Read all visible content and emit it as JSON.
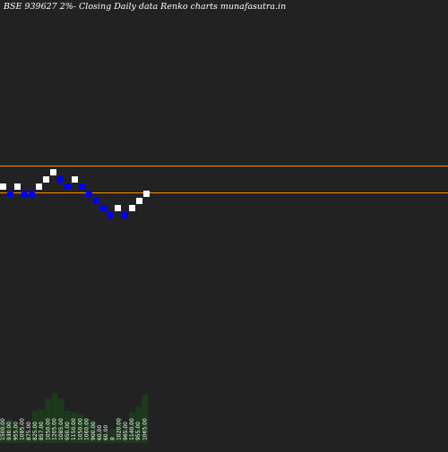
{
  "chart_data": {
    "type": "renko",
    "title": "BSE 939627 2%-  Closing Daily data  Renko  charts munafasutra.in",
    "colors": {
      "background": "#222222",
      "up_brick": "#ffffff",
      "down_brick": "#0000ff",
      "hline": "#ff8c00",
      "volume": "#1c3a1c",
      "label": "#ffffff"
    },
    "horizontal_lines": [
      {
        "level": "upper"
      },
      {
        "level": "lower"
      }
    ],
    "bricks": [
      {
        "dir": "up",
        "step": 0
      },
      {
        "dir": "down",
        "step": -1
      },
      {
        "dir": "up",
        "step": 0
      },
      {
        "dir": "down",
        "step": -1
      },
      {
        "dir": "down",
        "step": -1
      },
      {
        "dir": "up",
        "step": 0
      },
      {
        "dir": "up",
        "step": 1
      },
      {
        "dir": "up",
        "step": 2
      },
      {
        "dir": "down",
        "step": 1
      },
      {
        "dir": "down",
        "step": 0
      },
      {
        "dir": "up",
        "step": 1
      },
      {
        "dir": "down",
        "step": 0
      },
      {
        "dir": "down",
        "step": -1
      },
      {
        "dir": "down",
        "step": -2
      },
      {
        "dir": "down",
        "step": -3
      },
      {
        "dir": "down",
        "step": -4
      },
      {
        "dir": "up",
        "step": -3
      },
      {
        "dir": "down",
        "step": -4
      },
      {
        "dir": "up",
        "step": -3
      },
      {
        "dir": "up",
        "step": -2
      },
      {
        "dir": "up",
        "step": -1
      }
    ],
    "volume_labels": [
      "1500.00",
      "930.00",
      "955.00",
      "1085.00",
      "875.00",
      "825.00",
      "857.00",
      "1050.00",
      "1205.00",
      "1085.00",
      "950.00",
      "1150.00",
      "1050.00",
      "1060.00",
      "900.00",
      "60.00",
      "60.00",
      "8",
      "1020.00",
      "965.00",
      "1140.00",
      "955.00",
      "1065.00"
    ],
    "volume_heights": [
      0.28,
      0.3,
      0.22,
      0.2,
      0.12,
      0.4,
      0.42,
      0.55,
      0.62,
      0.55,
      0.4,
      0.38,
      0.36,
      0.3,
      0.28,
      0.15,
      0.1,
      0.18,
      0.32,
      0.22,
      0.38,
      0.45,
      0.6
    ]
  }
}
